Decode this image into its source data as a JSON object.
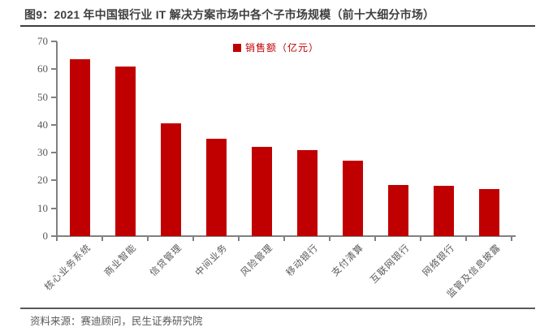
{
  "figure": {
    "title": "图9：2021 年中国银行业 IT 解决方案市场中各个子市场规模（前十大细分市场）",
    "source": "资料来源：赛迪顾问，民生证券研究院"
  },
  "chart_data": {
    "type": "bar",
    "title": "2021 年中国银行业 IT 解决方案市场中各个子市场规模（前十大细分市场）",
    "legend": [
      "销售额（亿元）"
    ],
    "legend_position": "top-center",
    "categories": [
      "核心业务系统",
      "商业智能",
      "信贷管理",
      "中间业务",
      "风险管理",
      "移动银行",
      "支付清算",
      "互联网银行",
      "网络银行",
      "监管及信息披露"
    ],
    "values": [
      63.5,
      61,
      40.5,
      35,
      32,
      31,
      27,
      18.5,
      18,
      17
    ],
    "unit": "亿元",
    "ylim": [
      0,
      70
    ],
    "yticks": [
      0,
      10,
      20,
      30,
      40,
      50,
      60,
      70
    ],
    "grid": false,
    "colors": {
      "bar": "#c00000",
      "legend_text": "#c00000",
      "axis": "#808080",
      "tick_text": "#595959",
      "title_text": "#3f3f3f",
      "source_text": "#595959"
    }
  }
}
